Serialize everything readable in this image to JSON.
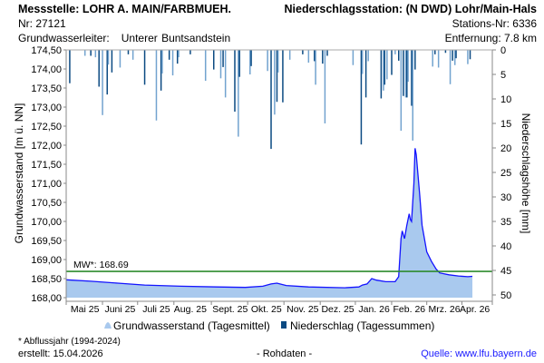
{
  "header": {
    "station": "Messstelle: LOHR A. MAIN/FARBMUEH.",
    "nr": "Nr: 27121",
    "aquifer_label": "Grundwasserleiter:",
    "aquifer": "Unterer Buntsandstein",
    "precip_station": "Niederschlagsstation: (N DWD) Lohr/Main-Hals",
    "precip_nr": "Stations-Nr: 6336",
    "distance": "Entfernung: 7.8 km"
  },
  "footer": {
    "note": "* Abflussjahr (1994-2024)",
    "created": "erstellt:  15.04.2026",
    "raw": "- Rohdaten -",
    "source": "Quelle: www.lfu.bayern.de"
  },
  "colors": {
    "area": "#a9c9ee",
    "line": "#1414ff",
    "mw": "#2e8b2e",
    "bar_dark": "#0b4a82",
    "bar_light": "#72a3cf"
  },
  "chart_data": {
    "type": "area+bar",
    "ylabel_left": "Grundwasserstand [m ü. NN]",
    "ylabel_right": "Niederschlagshöhe [mm]",
    "ylim_left": [
      168.0,
      174.5
    ],
    "ylim_right_inverted": [
      0,
      50
    ],
    "left_ticks": [
      "174,50",
      "174,00",
      "173,50",
      "173,00",
      "172,50",
      "172,00",
      "171,50",
      "171,00",
      "170,50",
      "170,00",
      "169,50",
      "169,00",
      "168,50",
      "168,00"
    ],
    "right_ticks": [
      "0",
      "5",
      "10",
      "15",
      "20",
      "25",
      "30",
      "35",
      "40",
      "45",
      "50"
    ],
    "x_domain_days": [
      0,
      364
    ],
    "month_labels": [
      {
        "label": "Mai 25",
        "day": 16
      },
      {
        "label": "Juni 25",
        "day": 46
      },
      {
        "label": "Juli 25",
        "day": 77
      },
      {
        "label": "Aug. 25",
        "day": 106
      },
      {
        "label": "Sept. 25",
        "day": 140
      },
      {
        "label": "Okt. 25",
        "day": 171
      },
      {
        "label": "Nov. 25",
        "day": 202
      },
      {
        "label": "Dez. 25",
        "day": 232
      },
      {
        "label": "Jan. 26",
        "day": 263
      },
      {
        "label": "Feb. 26",
        "day": 293
      },
      {
        "label": "Mrz. 26",
        "day": 323
      },
      {
        "label": "Apr. 26",
        "day": 349
      }
    ],
    "month_ticks_days": [
      0,
      31,
      61,
      92,
      124,
      155,
      186,
      217,
      247,
      278,
      308,
      338,
      364
    ],
    "mw": {
      "label": "MW*: 168.69",
      "value": 168.69
    },
    "legend": [
      "Grundwasserstand (Tagesmittel)",
      "Niederschlag (Tagessummen)"
    ],
    "groundwater": [
      [
        0,
        168.47
      ],
      [
        21,
        168.43
      ],
      [
        44,
        168.38
      ],
      [
        67,
        168.33
      ],
      [
        98,
        168.3
      ],
      [
        129,
        168.28
      ],
      [
        153,
        168.27
      ],
      [
        168,
        168.3
      ],
      [
        175,
        168.36
      ],
      [
        180,
        168.38
      ],
      [
        188,
        168.32
      ],
      [
        207,
        168.28
      ],
      [
        238,
        168.26
      ],
      [
        250,
        168.28
      ],
      [
        253,
        168.33
      ],
      [
        257,
        168.36
      ],
      [
        261,
        168.5
      ],
      [
        265,
        168.46
      ],
      [
        273,
        168.42
      ],
      [
        281,
        168.42
      ],
      [
        284,
        168.55
      ],
      [
        286,
        169.55
      ],
      [
        287,
        169.75
      ],
      [
        289,
        169.55
      ],
      [
        291,
        169.9
      ],
      [
        293,
        170.2
      ],
      [
        294,
        170.05
      ],
      [
        295,
        170.0
      ],
      [
        297,
        171.0
      ],
      [
        298,
        171.92
      ],
      [
        299,
        171.75
      ],
      [
        302,
        170.7
      ],
      [
        304,
        169.9
      ],
      [
        308,
        169.2
      ],
      [
        312,
        168.95
      ],
      [
        316,
        168.75
      ],
      [
        319,
        168.65
      ],
      [
        327,
        168.6
      ],
      [
        335,
        168.57
      ],
      [
        343,
        168.55
      ],
      [
        347,
        168.56
      ]
    ],
    "precipitation": [
      [
        3,
        6.8
      ],
      [
        16,
        1.2
      ],
      [
        21,
        1.2
      ],
      [
        25,
        1.5
      ],
      [
        28,
        7.5
      ],
      [
        31,
        13.3
      ],
      [
        35,
        9.1
      ],
      [
        36,
        3.0
      ],
      [
        39,
        4.6
      ],
      [
        46,
        3.6
      ],
      [
        53,
        0.9
      ],
      [
        57,
        2.0
      ],
      [
        67,
        7.1
      ],
      [
        77,
        14.4
      ],
      [
        81,
        8.3
      ],
      [
        82,
        4.8
      ],
      [
        88,
        2.0
      ],
      [
        91,
        5.2
      ],
      [
        95,
        2.8
      ],
      [
        96,
        1.5
      ],
      [
        106,
        0.9
      ],
      [
        119,
        6.3
      ],
      [
        126,
        4.0
      ],
      [
        132,
        5.8
      ],
      [
        134,
        3.5
      ],
      [
        136,
        9.7
      ],
      [
        144,
        12.6
      ],
      [
        147,
        17.7
      ],
      [
        148,
        5.5
      ],
      [
        157,
        5.0
      ],
      [
        158,
        3.3
      ],
      [
        172,
        4.3
      ],
      [
        175,
        20.2
      ],
      [
        178,
        13.2
      ],
      [
        180,
        10.6
      ],
      [
        181,
        4.6
      ],
      [
        185,
        10.7
      ],
      [
        191,
        2.0
      ],
      [
        202,
        0.9
      ],
      [
        207,
        2.6
      ],
      [
        212,
        2.3
      ],
      [
        213,
        7.1
      ],
      [
        219,
        2.8
      ],
      [
        221,
        15.0
      ],
      [
        223,
        1.2
      ],
      [
        245,
        3.1
      ],
      [
        252,
        19.3
      ],
      [
        253,
        4.9
      ],
      [
        256,
        9.7
      ],
      [
        258,
        2.3
      ],
      [
        269,
        9.9
      ],
      [
        271,
        8.3
      ],
      [
        272,
        7.1
      ],
      [
        274,
        6.0
      ],
      [
        278,
        5.1
      ],
      [
        281,
        0.9
      ],
      [
        284,
        2.2
      ],
      [
        286,
        16.5
      ],
      [
        288,
        9.4
      ],
      [
        290,
        9.7
      ],
      [
        291,
        9.7
      ],
      [
        292,
        6.5
      ],
      [
        295,
        11.4
      ],
      [
        296,
        18.5
      ],
      [
        298,
        4.0
      ],
      [
        313,
        3.4
      ],
      [
        315,
        0.9
      ],
      [
        318,
        3.6
      ],
      [
        324,
        0.6
      ],
      [
        328,
        7.0
      ],
      [
        330,
        2.2
      ],
      [
        332,
        3.1
      ],
      [
        333,
        1.7
      ],
      [
        343,
        2.9
      ],
      [
        345,
        1.9
      ]
    ]
  }
}
